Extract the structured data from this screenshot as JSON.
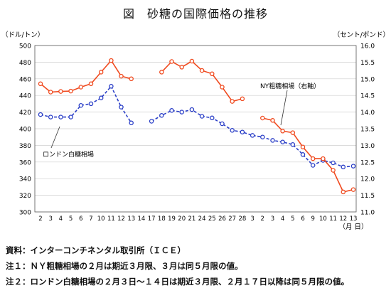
{
  "title": "図　砂糖の国際価格の推移",
  "footnotes": {
    "source": "資料：インターコンチネンタル取引所（ＩＣＥ）",
    "note1": "注１：ＮＹ粗糖相場の２月は期近３月限、３月は同５月限の値。",
    "note2": "注２：ロンドン白糖相場の２月３日～１４日は期近３月限、２月１７日以降は同５月限の値。"
  },
  "chart_data": {
    "type": "line",
    "left_axis_unit": "（ドル/トン）",
    "right_axis_unit": "（セント/ポンド）",
    "x_unit": "（月 日）",
    "x_ticks": [
      "2",
      "3",
      "4",
      "5",
      "6",
      "7",
      "10",
      "11",
      "12",
      "13",
      "14",
      "17",
      "18",
      "19",
      "20",
      "21",
      "24",
      "25",
      "26",
      "27",
      "28",
      "3",
      "2",
      "3",
      "4",
      "5",
      "6",
      "9",
      "10",
      "11",
      "12",
      "13"
    ],
    "y_left_ticks": [
      "500",
      "480",
      "460",
      "440",
      "420",
      "400",
      "380",
      "360",
      "340",
      "320",
      "300"
    ],
    "y_right_ticks": [
      "16.0",
      "15.5",
      "15.0",
      "14.5",
      "14.0",
      "13.5",
      "13.0",
      "12.5",
      "12.0",
      "11.5",
      "11.0"
    ],
    "ylim_left": [
      300,
      500
    ],
    "ylim_right": [
      11.0,
      16.0
    ],
    "grid": true,
    "series": [
      {
        "name": "ロンドン白糖相場",
        "axis": "left",
        "color": "#2b3fc7",
        "style": "dashed",
        "values": [
          417,
          414,
          414,
          414,
          428,
          430,
          437,
          451,
          426,
          407,
          null,
          409,
          416,
          422,
          420,
          423,
          415,
          413,
          406,
          398,
          396,
          392,
          390,
          386,
          384,
          381,
          369,
          356,
          362,
          359,
          354,
          355
        ]
      },
      {
        "name": "NY粗糖相場（右軸）",
        "axis": "right",
        "color": "#f04a1f",
        "style": "solid",
        "values": [
          14.85,
          14.6,
          14.62,
          14.63,
          14.75,
          14.85,
          15.2,
          15.55,
          15.08,
          15.0,
          null,
          null,
          15.2,
          15.52,
          15.35,
          15.53,
          15.25,
          15.15,
          14.75,
          14.32,
          14.4,
          null,
          13.82,
          13.75,
          13.43,
          13.38,
          12.95,
          12.6,
          12.6,
          12.25,
          11.6,
          11.67
        ]
      }
    ]
  }
}
